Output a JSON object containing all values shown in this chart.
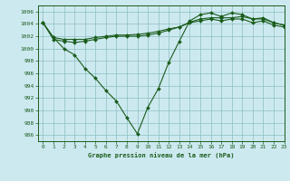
{
  "title": "Graphe pression niveau de la mer (hPa)",
  "background_color": "#cde9f0",
  "line_color": "#1a5c1a",
  "grid_color": "#8bbfbf",
  "xlim": [
    -0.5,
    23
  ],
  "ylim": [
    985,
    1007
  ],
  "yticks": [
    986,
    988,
    990,
    992,
    994,
    996,
    998,
    1000,
    1002,
    1004,
    1006
  ],
  "xticks": [
    0,
    1,
    2,
    3,
    4,
    5,
    6,
    7,
    8,
    9,
    10,
    11,
    12,
    13,
    14,
    15,
    16,
    17,
    18,
    19,
    20,
    21,
    22,
    23
  ],
  "series": [
    [
      1004.2,
      1001.8,
      1000.0,
      999.0,
      996.8,
      995.2,
      993.2,
      991.5,
      988.8,
      986.2,
      990.5,
      993.5,
      997.8,
      1001.2,
      1004.5,
      1005.5,
      1005.8,
      1005.2,
      1005.8,
      1005.5,
      1004.8,
      1005.0,
      1004.2,
      1003.8
    ],
    [
      1004.2,
      1001.5,
      1001.2,
      1001.0,
      1001.2,
      1001.5,
      1001.8,
      1002.0,
      1002.0,
      1002.0,
      1002.2,
      1002.5,
      1003.0,
      1003.5,
      1004.2,
      1004.5,
      1004.8,
      1004.5,
      1004.8,
      1004.8,
      1004.2,
      1004.5,
      1003.8,
      1003.5
    ],
    [
      1004.2,
      1001.8,
      1001.5,
      1001.5,
      1001.5,
      1001.8,
      1002.0,
      1002.2,
      1002.2,
      1002.3,
      1002.5,
      1002.8,
      1003.2,
      1003.5,
      1004.3,
      1004.8,
      1005.0,
      1005.0,
      1005.0,
      1005.2,
      1004.8,
      1004.8,
      1004.2,
      1003.8
    ]
  ]
}
